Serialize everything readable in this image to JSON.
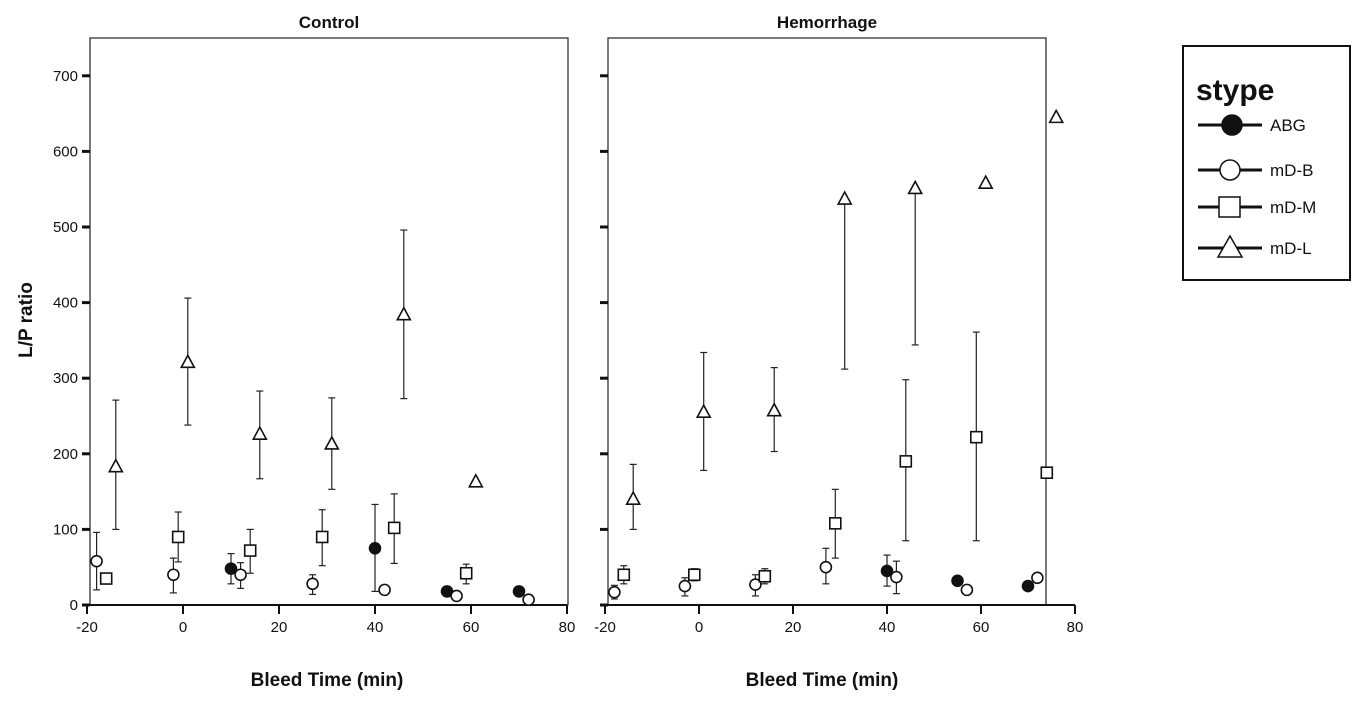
{
  "chart_data": {
    "type": "scatter",
    "ylabel": "L/P ratio",
    "ylim": [
      0,
      750
    ],
    "yticks": [
      0,
      100,
      200,
      300,
      400,
      500,
      600,
      700
    ],
    "xlim": [
      -20,
      80
    ],
    "xticks": [
      -20,
      0,
      20,
      40,
      60,
      80
    ],
    "grid": false,
    "legend": {
      "title": "stype",
      "placement": "right",
      "entries": [
        {
          "name": "ABG",
          "marker": "filled-circle"
        },
        {
          "name": "mD-B",
          "marker": "open-circle"
        },
        {
          "name": "mD-M",
          "marker": "open-square"
        },
        {
          "name": "mD-L",
          "marker": "open-triangle"
        }
      ]
    },
    "panels": [
      {
        "title": "Control",
        "xlabel": "Bleed Time (min)",
        "series": [
          {
            "name": "ABG",
            "points": [
              {
                "x": 10,
                "y": 48,
                "lo": 28,
                "hi": 68
              },
              {
                "x": 40,
                "y": 75,
                "lo": 18,
                "hi": 133
              },
              {
                "x": 55,
                "y": 18
              },
              {
                "x": 70,
                "y": 18
              }
            ]
          },
          {
            "name": "mD-B",
            "points": [
              {
                "x": -18,
                "y": 58,
                "lo": 20,
                "hi": 96
              },
              {
                "x": -2,
                "y": 40,
                "lo": 16,
                "hi": 62
              },
              {
                "x": 12,
                "y": 40,
                "lo": 22,
                "hi": 56
              },
              {
                "x": 27,
                "y": 28,
                "lo": 14,
                "hi": 40
              },
              {
                "x": 42,
                "y": 20
              },
              {
                "x": 57,
                "y": 12
              },
              {
                "x": 72,
                "y": 7
              }
            ]
          },
          {
            "name": "mD-M",
            "points": [
              {
                "x": -16,
                "y": 35
              },
              {
                "x": -1,
                "y": 90,
                "lo": 57,
                "hi": 123
              },
              {
                "x": 14,
                "y": 72,
                "lo": 42,
                "hi": 100
              },
              {
                "x": 29,
                "y": 90,
                "lo": 52,
                "hi": 126
              },
              {
                "x": 44,
                "y": 102,
                "lo": 55,
                "hi": 147
              },
              {
                "x": 59,
                "y": 42,
                "lo": 28,
                "hi": 54
              }
            ]
          },
          {
            "name": "mD-L",
            "points": [
              {
                "x": -14,
                "y": 183,
                "lo": 100,
                "hi": 271
              },
              {
                "x": 1,
                "y": 321,
                "lo": 238,
                "hi": 406
              },
              {
                "x": 16,
                "y": 226,
                "lo": 167,
                "hi": 283
              },
              {
                "x": 31,
                "y": 213,
                "lo": 153,
                "hi": 274
              },
              {
                "x": 46,
                "y": 384,
                "lo": 273,
                "hi": 496
              },
              {
                "x": 61,
                "y": 163
              }
            ]
          }
        ]
      },
      {
        "title": "Hemorrhage",
        "xlabel": "Bleed Time (min)",
        "series": [
          {
            "name": "ABG",
            "points": [
              {
                "x": 40,
                "y": 45,
                "lo": 25,
                "hi": 66
              },
              {
                "x": 55,
                "y": 32
              },
              {
                "x": 70,
                "y": 25
              }
            ]
          },
          {
            "name": "mD-B",
            "points": [
              {
                "x": -18,
                "y": 17,
                "lo": 8,
                "hi": 26
              },
              {
                "x": -3,
                "y": 25,
                "lo": 12,
                "hi": 36
              },
              {
                "x": 12,
                "y": 27,
                "lo": 12,
                "hi": 40
              },
              {
                "x": 27,
                "y": 50,
                "lo": 28,
                "hi": 75
              },
              {
                "x": 42,
                "y": 37,
                "lo": 15,
                "hi": 58
              },
              {
                "x": 57,
                "y": 20
              },
              {
                "x": 72,
                "y": 36
              }
            ]
          },
          {
            "name": "mD-M",
            "points": [
              {
                "x": -16,
                "y": 40,
                "lo": 28,
                "hi": 52
              },
              {
                "x": -1,
                "y": 40,
                "lo": 32,
                "hi": 48
              },
              {
                "x": 14,
                "y": 38,
                "lo": 28,
                "hi": 48
              },
              {
                "x": 29,
                "y": 108,
                "lo": 62,
                "hi": 153
              },
              {
                "x": 44,
                "y": 190,
                "lo": 85,
                "hi": 298
              },
              {
                "x": 59,
                "y": 222,
                "lo": 85,
                "hi": 361
              },
              {
                "x": 74,
                "y": 175
              }
            ]
          },
          {
            "name": "mD-L",
            "points": [
              {
                "x": -14,
                "y": 140,
                "lo": 100,
                "hi": 186
              },
              {
                "x": 1,
                "y": 255,
                "lo": 178,
                "hi": 334
              },
              {
                "x": 16,
                "y": 257,
                "lo": 203,
                "hi": 314
              },
              {
                "x": 31,
                "y": 537,
                "lo": 312,
                "hi": 537
              },
              {
                "x": 46,
                "y": 551,
                "lo": 344,
                "hi": 551
              },
              {
                "x": 61,
                "y": 558
              },
              {
                "x": 76,
                "y": 645
              }
            ]
          }
        ]
      }
    ]
  }
}
